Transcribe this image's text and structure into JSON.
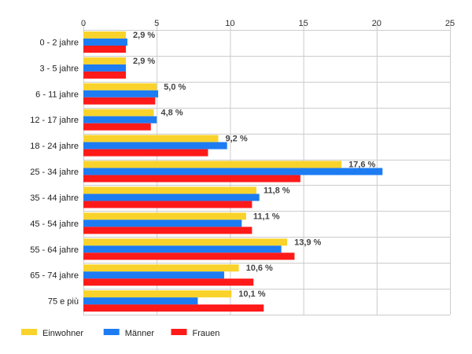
{
  "chart_data": {
    "type": "bar",
    "orientation": "horizontal",
    "categories": [
      "0 - 2 jahre",
      "3 - 5 jahre",
      "6 - 11 jahre",
      "12 - 17 jahre",
      "18 - 24 jahre",
      "25 - 34 jahre",
      "35 - 44 jahre",
      "45 - 54 jahre",
      "55 - 64 jahre",
      "65 - 74 jahre",
      "75 e più"
    ],
    "series": [
      {
        "name": "Einwohner",
        "color": "#f9d32c",
        "values": [
          2.9,
          2.9,
          5.0,
          4.8,
          9.2,
          17.6,
          11.8,
          11.1,
          13.9,
          10.6,
          10.1
        ]
      },
      {
        "name": "Männer",
        "color": "#1e7cf2",
        "values": [
          3.0,
          2.9,
          5.1,
          5.0,
          9.8,
          20.4,
          12.0,
          10.8,
          13.5,
          9.6,
          7.8
        ]
      },
      {
        "name": "Frauen",
        "color": "#ff1a1a",
        "values": [
          2.9,
          2.9,
          4.9,
          4.6,
          8.5,
          14.8,
          11.5,
          11.5,
          14.4,
          11.6,
          12.3
        ]
      }
    ],
    "data_labels": [
      "2,9 %",
      "2,9 %",
      "5,0 %",
      "4,8 %",
      "9,2 %",
      "17,6 %",
      "11,8 %",
      "11,1 %",
      "13,9 %",
      "10,6 %",
      "10,1 %"
    ],
    "xticks": [
      0,
      5,
      10,
      15,
      20,
      25
    ],
    "xlim": [
      0,
      25
    ],
    "title": "",
    "xlabel": "",
    "ylabel": "",
    "grid": true,
    "legend_position": "bottom-left"
  }
}
